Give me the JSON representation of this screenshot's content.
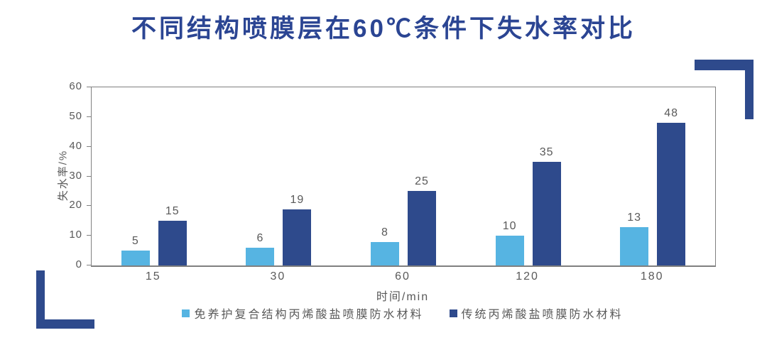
{
  "title": "不同结构喷膜层在60℃条件下失水率对比",
  "chart_data": {
    "type": "bar",
    "title": "不同结构喷膜层在60℃条件下失水率对比",
    "categories": [
      "15",
      "30",
      "60",
      "120",
      "180"
    ],
    "series": [
      {
        "name": "免养护复合结构丙烯酸盐喷膜防水材料",
        "color": "#56B4E2",
        "values": [
          5,
          6,
          8,
          10,
          13
        ]
      },
      {
        "name": "传统丙烯酸盐喷膜防水材料",
        "color": "#2E4A8C",
        "values": [
          15,
          19,
          25,
          35,
          48
        ]
      }
    ],
    "xlabel": "时间/min",
    "ylabel": "失水率/%",
    "ylim": [
      0,
      60
    ],
    "yticks": [
      0,
      10,
      20,
      30,
      40,
      50,
      60
    ],
    "grid": false,
    "data_labels": true,
    "legend_position": "bottom"
  },
  "colors": {
    "title_navy": "#2B4593",
    "bar_light_blue": "#56B4E2",
    "bar_dark_blue": "#2E4A8C",
    "corner_navy": "#2E4A8C",
    "label_gray": "#595959",
    "axis_gray": "#808080",
    "background": "#FFFFFF"
  }
}
